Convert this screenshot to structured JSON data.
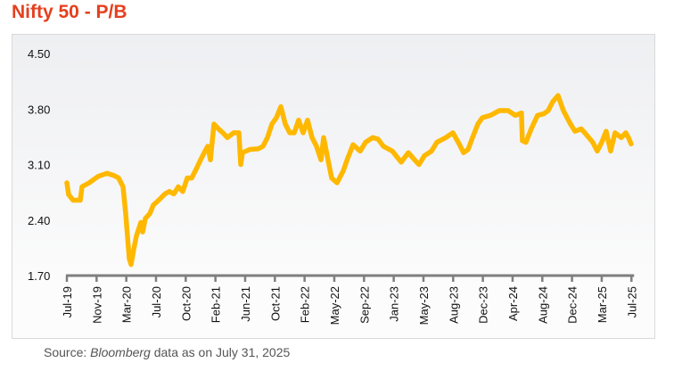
{
  "title": "Nifty 50 - P/B",
  "source": {
    "prefix": "Source: ",
    "italic": "Bloomberg",
    "suffix": " data as on July 31, 2025"
  },
  "colors": {
    "line": "#FFB800",
    "title": "#E4401E",
    "axis": "#7f7f7f"
  },
  "chart_data": {
    "type": "line",
    "title": "Nifty 50 - P/B",
    "xlabel": "",
    "ylabel": "",
    "ylim": [
      1.7,
      4.5
    ],
    "yticks": [
      "4.50",
      "3.80",
      "3.10",
      "2.40",
      "1.70"
    ],
    "yticks_values": [
      4.5,
      3.8,
      3.1,
      2.4,
      1.7
    ],
    "categories": [
      "Jul-19",
      "Nov-19",
      "Mar-20",
      "Jul-20",
      "Oct-20",
      "Feb-21",
      "Jun-21",
      "Oct-21",
      "Feb-22",
      "May-22",
      "Sep-22",
      "Jan-23",
      "May-23",
      "Aug-23",
      "Dec-23",
      "Apr-24",
      "Aug-24",
      "Dec-24",
      "Mar-25",
      "Jul-25"
    ],
    "grid": false,
    "series": [
      {
        "name": "Nifty 50 P/B",
        "x": [
          0,
          0.06,
          0.21,
          0.45,
          0.51,
          0.75,
          1.05,
          1.35,
          1.59,
          1.74,
          1.89,
          1.98,
          2.1,
          2.16,
          2.25,
          2.34,
          2.49,
          2.55,
          2.64,
          2.79,
          2.91,
          3.09,
          3.3,
          3.45,
          3.6,
          3.75,
          3.9,
          4.05,
          4.2,
          4.35,
          4.5,
          4.65,
          4.74,
          4.83,
          4.95,
          5.1,
          5.25,
          5.4,
          5.61,
          5.79,
          5.85,
          5.91,
          6.15,
          6.45,
          6.6,
          6.75,
          6.9,
          7.05,
          7.2,
          7.35,
          7.5,
          7.65,
          7.8,
          7.95,
          8.1,
          8.25,
          8.4,
          8.55,
          8.64,
          8.76,
          8.91,
          9.09,
          9.3,
          9.45,
          9.63,
          9.87,
          10.05,
          10.29,
          10.47,
          10.65,
          10.95,
          11.25,
          11.49,
          11.7,
          11.85,
          12.03,
          12.27,
          12.45,
          12.75,
          12.99,
          13.2,
          13.35,
          13.5,
          13.65,
          13.83,
          13.98,
          14.25,
          14.55,
          14.85,
          15.09,
          15.3,
          15.33,
          15.45,
          15.63,
          15.84,
          16.05,
          16.2,
          16.35,
          16.53,
          16.71,
          16.95,
          17.1,
          17.31,
          17.43,
          17.7,
          17.85,
          18.0,
          18.15,
          18.3,
          18.45,
          18.66,
          18.81,
          18.9,
          18.99
        ],
        "values": [
          2.87,
          2.72,
          2.65,
          2.65,
          2.82,
          2.87,
          2.95,
          2.99,
          2.96,
          2.93,
          2.82,
          2.48,
          1.91,
          1.84,
          2.03,
          2.2,
          2.37,
          2.25,
          2.42,
          2.48,
          2.59,
          2.65,
          2.73,
          2.76,
          2.73,
          2.82,
          2.76,
          2.93,
          2.93,
          3.04,
          3.16,
          3.27,
          3.33,
          3.16,
          3.61,
          3.55,
          3.5,
          3.44,
          3.5,
          3.5,
          3.1,
          3.25,
          3.29,
          3.3,
          3.33,
          3.44,
          3.61,
          3.69,
          3.83,
          3.61,
          3.5,
          3.5,
          3.66,
          3.5,
          3.66,
          3.44,
          3.33,
          3.16,
          3.44,
          3.21,
          2.93,
          2.87,
          3.02,
          3.18,
          3.35,
          3.27,
          3.38,
          3.44,
          3.42,
          3.33,
          3.27,
          3.13,
          3.25,
          3.16,
          3.1,
          3.21,
          3.27,
          3.38,
          3.44,
          3.5,
          3.36,
          3.25,
          3.29,
          3.44,
          3.61,
          3.69,
          3.72,
          3.78,
          3.78,
          3.72,
          3.75,
          3.4,
          3.38,
          3.55,
          3.72,
          3.74,
          3.78,
          3.89,
          3.97,
          3.78,
          3.61,
          3.52,
          3.55,
          3.5,
          3.38,
          3.27,
          3.38,
          3.52,
          3.27,
          3.5,
          3.44,
          3.5,
          3.44,
          3.36
        ]
      }
    ],
    "legend": "none"
  }
}
